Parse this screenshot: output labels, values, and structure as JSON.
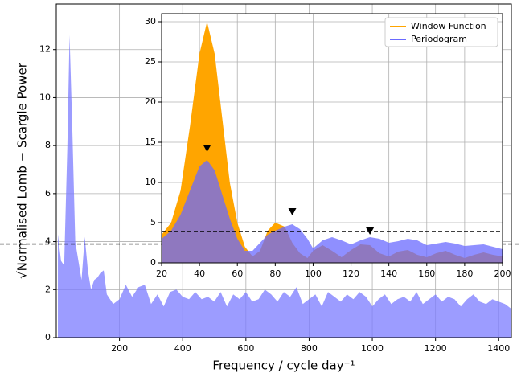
{
  "chart_data": [
    {
      "type": "area",
      "x_label": "Frequency / cycle day⁻¹",
      "y_label": "√Normalised Lomb − Scargle Power",
      "xlim": [
        0,
        1440
      ],
      "ylim": [
        0,
        13.9
      ],
      "xticks": [
        200,
        400,
        600,
        800,
        1000,
        1200,
        1400
      ],
      "yticks": [
        0,
        2,
        4,
        6,
        8,
        10,
        12
      ],
      "grid": true,
      "threshold": 3.9,
      "x": [
        5,
        15,
        25,
        35,
        42,
        50,
        60,
        70,
        80,
        90,
        100,
        110,
        120,
        130,
        140,
        150,
        160,
        180,
        200,
        220,
        240,
        260,
        280,
        300,
        320,
        340,
        360,
        380,
        400,
        420,
        440,
        460,
        480,
        500,
        520,
        540,
        560,
        580,
        600,
        620,
        640,
        660,
        680,
        700,
        720,
        740,
        760,
        780,
        800,
        820,
        840,
        860,
        880,
        900,
        920,
        940,
        960,
        980,
        1000,
        1020,
        1040,
        1060,
        1080,
        1100,
        1120,
        1140,
        1160,
        1180,
        1200,
        1220,
        1240,
        1260,
        1280,
        1300,
        1320,
        1340,
        1360,
        1380,
        1400,
        1420,
        1440
      ],
      "series": [
        {
          "color": "#7b7bff",
          "values": [
            4.3,
            3.2,
            3.0,
            8,
            12.6,
            9,
            4,
            3.2,
            2.4,
            4.2,
            2.8,
            2.0,
            2.4,
            2.5,
            2.7,
            2.8,
            1.8,
            1.4,
            1.6,
            2.2,
            1.7,
            2.1,
            2.2,
            1.4,
            1.8,
            1.3,
            1.9,
            2.0,
            1.7,
            1.6,
            1.9,
            1.6,
            1.7,
            1.5,
            1.9,
            1.3,
            1.8,
            1.6,
            1.9,
            1.5,
            1.6,
            2.0,
            1.8,
            1.5,
            1.9,
            1.7,
            2.1,
            1.4,
            1.6,
            1.8,
            1.3,
            1.9,
            1.7,
            1.5,
            1.8,
            1.6,
            1.9,
            1.7,
            1.3,
            1.6,
            1.8,
            1.4,
            1.6,
            1.7,
            1.5,
            1.9,
            1.4,
            1.6,
            1.8,
            1.5,
            1.7,
            1.6,
            1.3,
            1.6,
            1.8,
            1.5,
            1.4,
            1.6,
            1.5,
            1.4,
            1.2
          ]
        }
      ]
    },
    {
      "type": "area",
      "xlim": [
        20,
        200
      ],
      "ylim": [
        0,
        31
      ],
      "xticks": [
        20,
        40,
        60,
        80,
        100,
        120,
        140,
        160,
        180,
        200
      ],
      "yticks": [
        0,
        5,
        10,
        15,
        20,
        25,
        30
      ],
      "grid": true,
      "threshold": 3.9,
      "legend": "upper right",
      "x": [
        20,
        25,
        30,
        35,
        40,
        44,
        48,
        52,
        56,
        60,
        64,
        68,
        72,
        76,
        80,
        85,
        89,
        93,
        97,
        100,
        105,
        110,
        115,
        120,
        125,
        130,
        135,
        140,
        145,
        150,
        155,
        160,
        165,
        170,
        175,
        180,
        185,
        190,
        195,
        200
      ],
      "series": [
        {
          "name": "Window Function",
          "color": "#ffa500",
          "values": [
            3.5,
            5,
            9,
            17,
            26,
            30,
            26,
            18,
            10,
            5,
            2,
            0.8,
            1.5,
            4,
            5,
            4.5,
            2.5,
            1.2,
            0.6,
            1.5,
            2.2,
            1.5,
            0.7,
            1.6,
            2.3,
            2.2,
            1.2,
            0.8,
            1.4,
            1.6,
            1.0,
            0.7,
            1.2,
            1.5,
            1.0,
            0.6,
            1.0,
            1.3,
            1.0,
            0.8
          ]
        },
        {
          "name": "Periodogram",
          "color": "#6a6aff",
          "values": [
            3,
            4,
            6,
            9,
            12,
            12.8,
            11.5,
            8.5,
            5.5,
            3,
            1.5,
            1.5,
            2.5,
            3.5,
            4,
            4.5,
            4.8,
            4.2,
            3,
            1.8,
            2.8,
            3.2,
            2.8,
            2.3,
            2.8,
            3.2,
            3.0,
            2.5,
            2.7,
            3.0,
            2.8,
            2.2,
            2.4,
            2.6,
            2.4,
            2.1,
            2.2,
            2.3,
            2.0,
            1.7
          ]
        }
      ],
      "markers": {
        "x": [
          44,
          89,
          130
        ],
        "y": [
          14.2,
          6.3,
          3.9
        ]
      }
    }
  ]
}
